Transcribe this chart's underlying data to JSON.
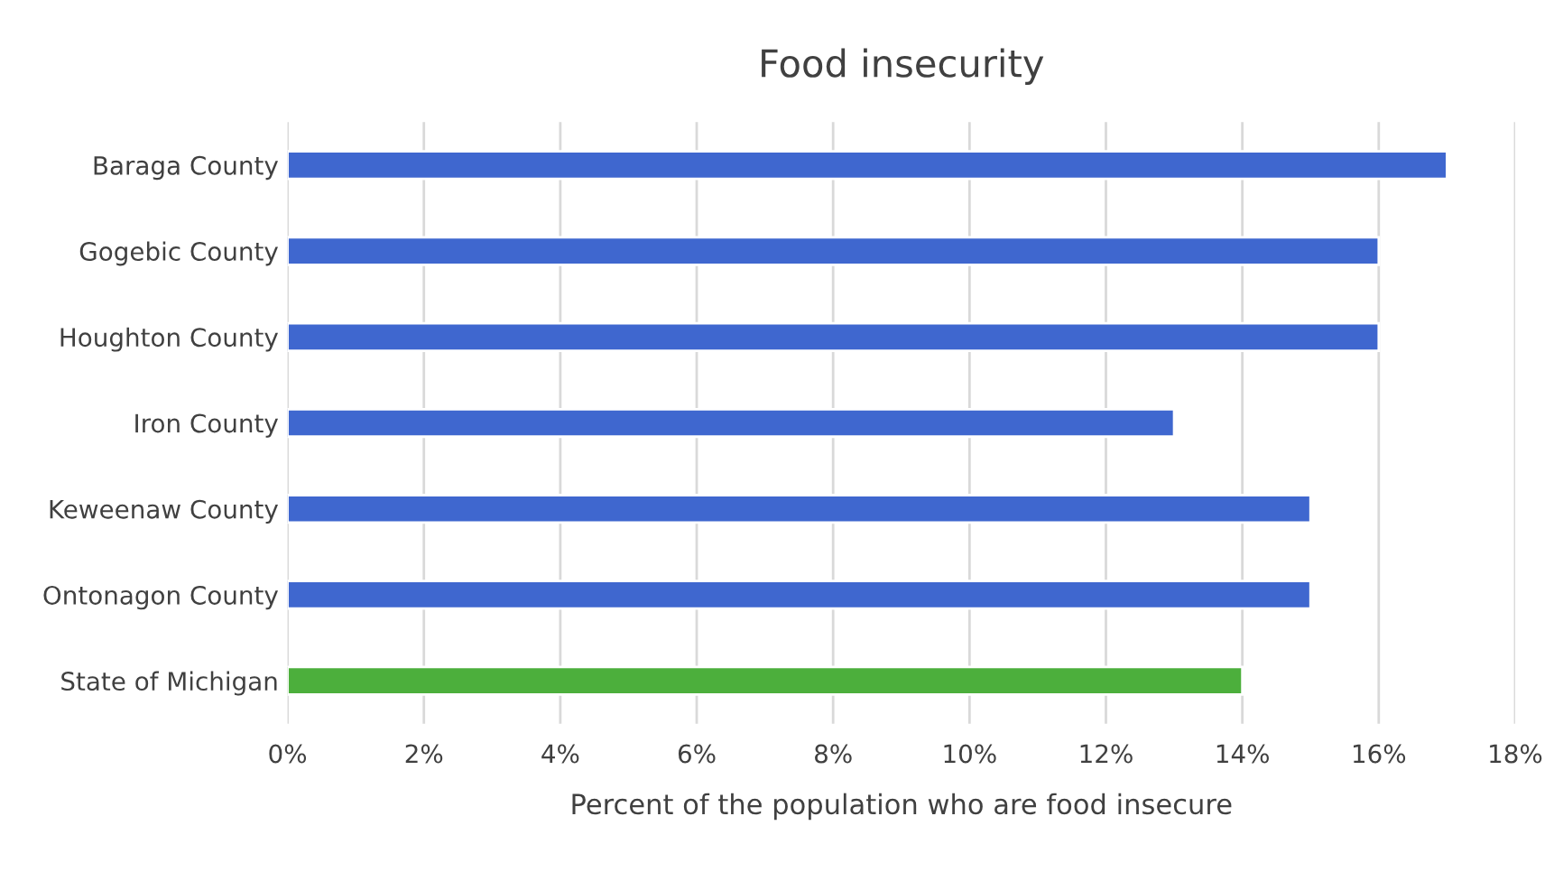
{
  "chart_data": {
    "type": "bar",
    "orientation": "horizontal",
    "title": "Food insecurity",
    "xlabel": "Percent of the population who are food insecure",
    "categories": [
      "Baraga County",
      "Gogebic County",
      "Houghton County",
      "Iron County",
      "Keweenaw County",
      "Ontonagon County",
      "State of Michigan"
    ],
    "values": [
      17,
      16,
      16,
      13,
      15,
      15,
      14
    ],
    "colors": [
      "#3f67cf",
      "#3f67cf",
      "#3f67cf",
      "#3f67cf",
      "#3f67cf",
      "#3f67cf",
      "#4caf3c"
    ],
    "xlim": [
      0,
      18
    ],
    "xticks": [
      {
        "value": 0,
        "label": "0%"
      },
      {
        "value": 2,
        "label": "2%"
      },
      {
        "value": 4,
        "label": "4%"
      },
      {
        "value": 6,
        "label": "6%"
      },
      {
        "value": 8,
        "label": "8%"
      },
      {
        "value": 10,
        "label": "10%"
      },
      {
        "value": 12,
        "label": "12%"
      },
      {
        "value": 14,
        "label": "14%"
      },
      {
        "value": 16,
        "label": "16%"
      },
      {
        "value": 18,
        "label": "18%"
      }
    ],
    "grid": "x",
    "legend": false
  }
}
